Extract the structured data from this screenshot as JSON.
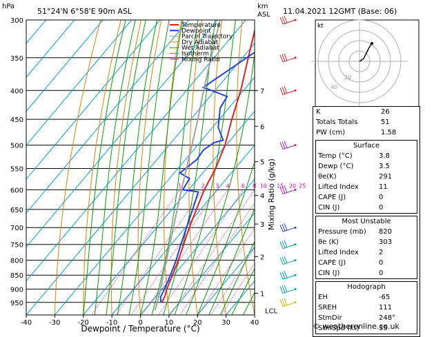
{
  "header": {
    "hpa_label": "hPa",
    "location": "51°24'N  6°58'E  90m  ASL",
    "km_label": "km",
    "asl_label": "ASL",
    "datetime": "11.04.2021  12GMT  (Base: 06)"
  },
  "legend": [
    {
      "label": "Temperature",
      "color": "#e02020"
    },
    {
      "label": "Dewpoint",
      "color": "#2040e0"
    },
    {
      "label": "Parcel Trajectory",
      "color": "#a0a0a0"
    },
    {
      "label": "Dry Adiabat",
      "color": "#e08000"
    },
    {
      "label": "Wet Adiabat",
      "color": "#00a000"
    },
    {
      "label": "Isotherm",
      "color": "#00a0e0"
    },
    {
      "label": "Mixing Ratio",
      "color": "#e000a0"
    }
  ],
  "chart_data": {
    "type": "line",
    "title": "",
    "xlabel": "Dewpoint / Temperature (°C)",
    "ylabel": "",
    "mixing_ratio_axis_label": "Mixing Ratio (g/kg)",
    "x_ticks": [
      -40,
      -30,
      -20,
      -10,
      0,
      10,
      20,
      30,
      40
    ],
    "x_range": [
      -40,
      40
    ],
    "pressure_ticks": [
      300,
      350,
      400,
      450,
      500,
      550,
      600,
      650,
      700,
      750,
      800,
      850,
      900,
      950
    ],
    "pressure_range": [
      300,
      1000
    ],
    "km_ticks": [
      {
        "km": "1",
        "p": 915
      },
      {
        "km": "2",
        "p": 788
      },
      {
        "km": "3",
        "p": 690
      },
      {
        "km": "4",
        "p": 614
      },
      {
        "km": "5",
        "p": 535
      },
      {
        "km": "6",
        "p": 463
      },
      {
        "km": "7",
        "p": 400
      }
    ],
    "lcl_label": "LCL",
    "lcl_pressure": 982,
    "mixing_ratio_labels": [
      "1",
      "2",
      "3",
      "4",
      "6",
      "8",
      "10",
      "15",
      "20",
      "25"
    ],
    "mixing_ratio_values": [
      1,
      2,
      3,
      4,
      6,
      8,
      10,
      15,
      20,
      25
    ],
    "series": [
      {
        "name": "Temperature",
        "color": "#e02020",
        "points": [
          [
            3.8,
            950
          ],
          [
            3,
            925
          ],
          [
            1.6,
            900
          ],
          [
            -0.5,
            850
          ],
          [
            -2.8,
            800
          ],
          [
            -5.6,
            750
          ],
          [
            -8.6,
            700
          ],
          [
            -11.5,
            650
          ],
          [
            -14.5,
            600
          ],
          [
            -16.8,
            550
          ],
          [
            -20.4,
            500
          ],
          [
            -25.6,
            450
          ],
          [
            -31,
            400
          ],
          [
            -38,
            350
          ],
          [
            -46,
            300
          ]
        ]
      },
      {
        "name": "Dewpoint",
        "color": "#2040e0",
        "points": [
          [
            3.5,
            950
          ],
          [
            1.8,
            930
          ],
          [
            0.8,
            900
          ],
          [
            -1.2,
            850
          ],
          [
            -3.6,
            800
          ],
          [
            -6.6,
            750
          ],
          [
            -9.6,
            700
          ],
          [
            -12.8,
            650
          ],
          [
            -16,
            605
          ],
          [
            -22,
            600
          ],
          [
            -23,
            573
          ],
          [
            -28,
            560
          ],
          [
            -26,
            530
          ],
          [
            -26.5,
            510
          ],
          [
            -25,
            495
          ],
          [
            -22.5,
            490
          ],
          [
            -28,
            465
          ],
          [
            -33,
            430
          ],
          [
            -34,
            410
          ],
          [
            -45,
            395
          ],
          [
            -37,
            340
          ],
          [
            -39,
            300
          ]
        ]
      },
      {
        "name": "Parcel Trajectory",
        "color": "#a0a0a0",
        "points": [
          [
            3.8,
            982
          ],
          [
            2.2,
            950
          ],
          [
            -0.6,
            900
          ],
          [
            -3.7,
            850
          ],
          [
            -7,
            800
          ],
          [
            -10.5,
            750
          ],
          [
            -14.2,
            700
          ],
          [
            -18.2,
            650
          ],
          [
            -22.5,
            600
          ],
          [
            -27,
            550
          ],
          [
            -32,
            500
          ],
          [
            -37.5,
            450
          ],
          [
            -44,
            400
          ],
          [
            -51,
            350
          ],
          [
            -59,
            300
          ]
        ]
      }
    ]
  },
  "index_table": {
    "rows": [
      {
        "label": "K",
        "value": "26"
      },
      {
        "label": "Totals Totals",
        "value": "51"
      },
      {
        "label": "PW (cm)",
        "value": "1.58"
      }
    ],
    "surface": {
      "title": "Surface",
      "rows": [
        {
          "label": "Temp (°C)",
          "value": "3.8"
        },
        {
          "label": "Dewp (°C)",
          "value": "3.5"
        },
        {
          "label": "θe(K)",
          "value": "291"
        },
        {
          "label": "Lifted Index",
          "value": "11"
        },
        {
          "label": "CAPE (J)",
          "value": "0"
        },
        {
          "label": "CIN (J)",
          "value": "0"
        }
      ]
    },
    "unstable": {
      "title": "Most Unstable",
      "rows": [
        {
          "label": "Pressure (mb)",
          "value": "820"
        },
        {
          "label": "θe (K)",
          "value": "303"
        },
        {
          "label": "Lifted Index",
          "value": "2"
        },
        {
          "label": "CAPE (J)",
          "value": "0"
        },
        {
          "label": "CIN (J)",
          "value": "0"
        }
      ]
    },
    "hodograph": {
      "title": "Hodograph",
      "rows": [
        {
          "label": "EH",
          "value": "-65"
        },
        {
          "label": "SREH",
          "value": "111"
        },
        {
          "label": "StmDir",
          "value": "248°"
        },
        {
          "label": "StmSpd (kt)",
          "value": "35"
        }
      ]
    }
  },
  "hodo": {
    "kt_label": "kt",
    "ring_labels": [
      "20",
      "40"
    ]
  },
  "footer": "© weatheronline.co.uk"
}
